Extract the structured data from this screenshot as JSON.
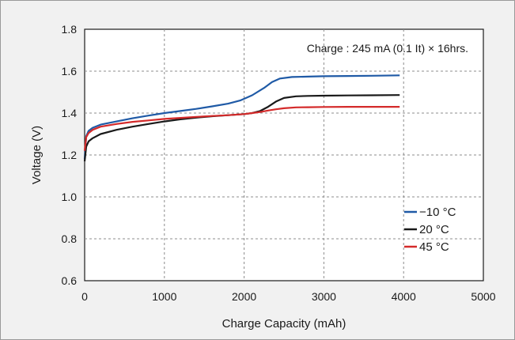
{
  "chart_data": {
    "type": "line",
    "title": "",
    "xlabel": "Charge Capacity (mAh)",
    "ylabel": "Voltage (V)",
    "xlim": [
      0,
      5000
    ],
    "ylim": [
      0.6,
      1.8
    ],
    "x_ticks": [
      "0",
      "1000",
      "2000",
      "3000",
      "4000",
      "5000"
    ],
    "y_ticks": [
      "0.6",
      "0.8",
      "1.0",
      "1.2",
      "1.4",
      "1.6",
      "1.8"
    ],
    "grid": true,
    "legend_position": "bottom-right",
    "annotation": "Charge : 245 mA (0.1 It) × 16hrs.",
    "series": [
      {
        "name": "−10 °C",
        "color": "#1f5aa6",
        "x": [
          0,
          20,
          50,
          100,
          200,
          400,
          600,
          800,
          1000,
          1200,
          1400,
          1600,
          1800,
          1950,
          2100,
          2250,
          2350,
          2450,
          2600,
          2800,
          3000,
          3300,
          3600,
          3950
        ],
        "y": [
          1.18,
          1.29,
          1.315,
          1.33,
          1.345,
          1.36,
          1.375,
          1.388,
          1.4,
          1.41,
          1.42,
          1.432,
          1.445,
          1.46,
          1.485,
          1.52,
          1.548,
          1.565,
          1.572,
          1.574,
          1.576,
          1.577,
          1.578,
          1.58
        ]
      },
      {
        "name": "20 °C",
        "color": "#1a1a1a",
        "x": [
          0,
          20,
          50,
          100,
          200,
          400,
          600,
          800,
          1000,
          1200,
          1400,
          1600,
          1800,
          2000,
          2100,
          2200,
          2300,
          2400,
          2500,
          2650,
          2800,
          3000,
          3300,
          3600,
          3950
        ],
        "y": [
          1.17,
          1.24,
          1.265,
          1.28,
          1.3,
          1.32,
          1.335,
          1.348,
          1.36,
          1.37,
          1.378,
          1.385,
          1.39,
          1.395,
          1.4,
          1.41,
          1.43,
          1.455,
          1.472,
          1.48,
          1.482,
          1.483,
          1.484,
          1.485,
          1.486
        ]
      },
      {
        "name": "45 °C",
        "color": "#d42a2a",
        "x": [
          0,
          20,
          50,
          100,
          200,
          400,
          600,
          800,
          1000,
          1200,
          1400,
          1600,
          1800,
          2000,
          2100,
          2200,
          2300,
          2400,
          2500,
          2650,
          2800,
          3000,
          3300,
          3600,
          3950
        ],
        "y": [
          1.22,
          1.285,
          1.305,
          1.32,
          1.335,
          1.348,
          1.358,
          1.365,
          1.372,
          1.377,
          1.382,
          1.386,
          1.39,
          1.395,
          1.4,
          1.405,
          1.412,
          1.418,
          1.423,
          1.427,
          1.428,
          1.429,
          1.43,
          1.43,
          1.43
        ]
      }
    ]
  }
}
